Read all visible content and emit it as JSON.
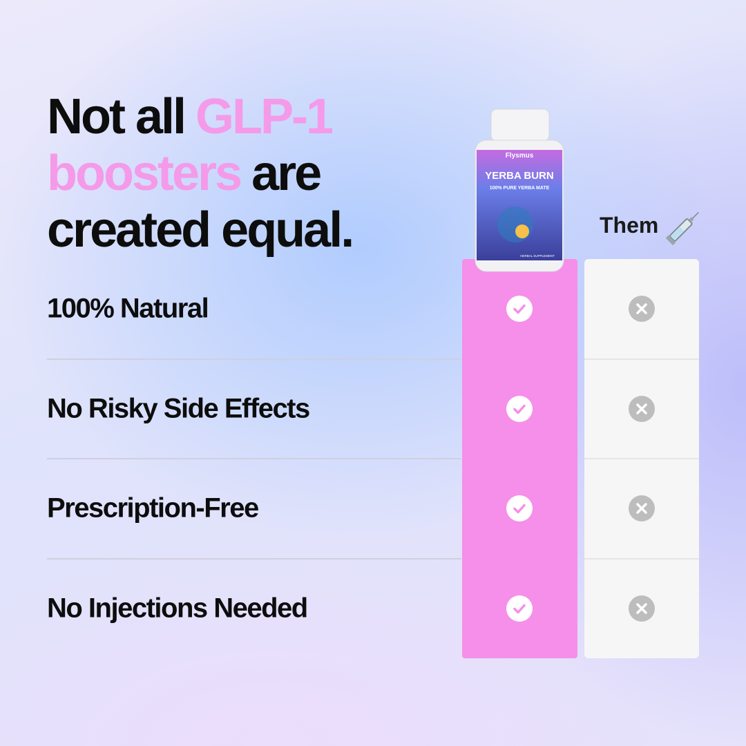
{
  "headline": {
    "lines": [
      [
        {
          "text": "Not all",
          "highlight": false
        },
        {
          "text": "GLP-1",
          "highlight": true
        }
      ],
      [
        {
          "text": "boosters",
          "highlight": true
        },
        {
          "text": "are",
          "highlight": false
        }
      ],
      [
        {
          "text": "created equal.",
          "highlight": false
        }
      ]
    ]
  },
  "product": {
    "brand": "Flysmus",
    "name": "YERBA BURN",
    "tagline": "100% PURE YERBA MATE",
    "footer": "HERBAL SUPPLEMENT"
  },
  "competitor": {
    "label": "Them"
  },
  "rows": [
    "100% Natural",
    "No Risky Side Effects",
    "Prescription-Free",
    "No Injections Needed"
  ]
}
